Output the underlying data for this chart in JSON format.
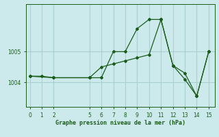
{
  "xlabel": "Graphe pression niveau de la mer (hPa)",
  "background_color": "#cce9eb",
  "grid_color": "#aacfd2",
  "line_color": "#1a5c1a",
  "series1_x": [
    0,
    1,
    2,
    5,
    6,
    7,
    8,
    9,
    10,
    11,
    12,
    13,
    14,
    15
  ],
  "series1_y": [
    1004.2,
    1004.2,
    1004.15,
    1004.15,
    1004.15,
    1005.0,
    1005.0,
    1005.75,
    1006.05,
    1006.05,
    1004.55,
    1004.1,
    1003.55,
    1005.0
  ],
  "series2_x": [
    0,
    2,
    5,
    6,
    7,
    8,
    9,
    10,
    11,
    12,
    13,
    14,
    15
  ],
  "series2_y": [
    1004.2,
    1004.15,
    1004.15,
    1004.5,
    1004.6,
    1004.7,
    1004.8,
    1004.9,
    1006.05,
    1004.55,
    1004.3,
    1003.55,
    1005.0
  ],
  "xticks": [
    0,
    1,
    2,
    5,
    6,
    7,
    8,
    9,
    10,
    11,
    12,
    13,
    14,
    15
  ],
  "ytick_positions": [
    1004,
    1005
  ],
  "ytick_labels": [
    "1004",
    "1005"
  ],
  "ylim": [
    1003.2,
    1006.55
  ],
  "xlim": [
    -0.3,
    15.5
  ]
}
